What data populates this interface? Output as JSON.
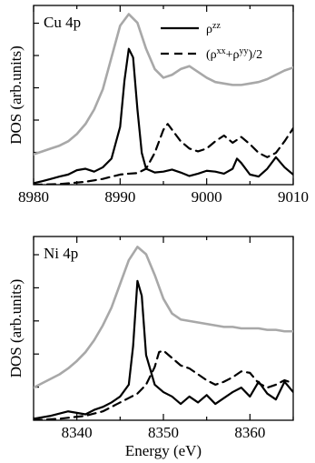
{
  "chart_data": [
    {
      "type": "line",
      "panel_label": "Cu 4p",
      "xlim": [
        8980,
        9010
      ],
      "ylim": [
        0,
        6.2
      ],
      "xticks": [
        8980,
        8990,
        9000,
        9010
      ],
      "xtick_labels": [
        "8980",
        "8990",
        "9000",
        "9010"
      ],
      "ylabel": "DOS (arb.units)",
      "xlabel": "",
      "grid": false,
      "legend": {
        "placement": "top-right",
        "entries": [
          {
            "series": "rho_zz",
            "label_base": "ρ",
            "label_sup": "zz",
            "label_tail": ""
          },
          {
            "series": "rho_xy",
            "label_base": "(ρ",
            "label_sup": "xx",
            "label_mid": "+ρ",
            "label_sup2": "yy",
            "label_tail": ")/2"
          }
        ]
      },
      "series": [
        {
          "key": "total_gray",
          "color": "#a8a8a8",
          "style": "solid",
          "x": [
            8980,
            8981,
            8982,
            8983,
            8984,
            8985,
            8986,
            8987,
            8988,
            8989,
            8990,
            8991,
            8992,
            8993,
            8994,
            8995,
            8996,
            8997,
            8998,
            8999,
            9000,
            9001,
            9002,
            9003,
            9004,
            9005,
            9006,
            9007,
            9008,
            9009,
            9010
          ],
          "y": [
            1.05,
            1.15,
            1.25,
            1.35,
            1.5,
            1.75,
            2.1,
            2.6,
            3.3,
            4.4,
            5.5,
            5.9,
            5.6,
            4.7,
            4.0,
            3.7,
            3.8,
            4.0,
            4.1,
            3.9,
            3.7,
            3.55,
            3.5,
            3.45,
            3.45,
            3.5,
            3.55,
            3.65,
            3.8,
            3.95,
            4.05
          ]
        },
        {
          "key": "rho_zz",
          "color": "#000000",
          "style": "solid",
          "x": [
            8980,
            8981,
            8982,
            8983,
            8984,
            8985,
            8986,
            8987,
            8988,
            8989,
            8990,
            8990.5,
            8991,
            8991.5,
            8992,
            8992.5,
            8993,
            8994,
            8995,
            8996,
            8997,
            8998,
            8999,
            9000,
            9001,
            9002,
            9003,
            9003.5,
            9004,
            9005,
            9006,
            9007,
            9008,
            9009,
            9010
          ],
          "y": [
            0.05,
            0.12,
            0.2,
            0.28,
            0.35,
            0.5,
            0.55,
            0.45,
            0.6,
            0.9,
            2.0,
            3.6,
            4.7,
            4.4,
            2.6,
            1.1,
            0.55,
            0.42,
            0.45,
            0.52,
            0.42,
            0.3,
            0.38,
            0.48,
            0.45,
            0.38,
            0.55,
            0.9,
            0.75,
            0.35,
            0.28,
            0.55,
            0.95,
            0.6,
            0.35
          ]
        },
        {
          "key": "rho_xy",
          "color": "#000000",
          "style": "dashed",
          "x": [
            8980,
            8983,
            8986,
            8988,
            8990,
            8991,
            8992,
            8993,
            8994,
            8995,
            8995.5,
            8996,
            8997,
            8998,
            8999,
            9000,
            9001,
            9002,
            9003,
            9004,
            9005,
            9006,
            9007,
            9008,
            9009,
            9010
          ],
          "y": [
            0.0,
            0.02,
            0.1,
            0.2,
            0.35,
            0.38,
            0.4,
            0.55,
            1.1,
            1.9,
            2.1,
            1.9,
            1.5,
            1.25,
            1.15,
            1.25,
            1.5,
            1.7,
            1.45,
            1.65,
            1.4,
            1.1,
            0.95,
            1.1,
            1.5,
            1.95
          ]
        }
      ]
    },
    {
      "type": "line",
      "panel_label": "Ni 4p",
      "xlim": [
        8335,
        8365
      ],
      "ylim": [
        0,
        6.2
      ],
      "xticks": [
        8340,
        8350,
        8360
      ],
      "xtick_labels": [
        "8340",
        "8350",
        "8360"
      ],
      "ylabel": "DOS (arb.units)",
      "xlabel": "Energy (eV)",
      "grid": false,
      "series": [
        {
          "key": "total_gray",
          "color": "#a8a8a8",
          "style": "solid",
          "x": [
            8335,
            8336,
            8337,
            8338,
            8339,
            8340,
            8341,
            8342,
            8343,
            8344,
            8345,
            8346,
            8347,
            8348,
            8349,
            8350,
            8351,
            8352,
            8353,
            8354,
            8355,
            8356,
            8357,
            8358,
            8359,
            8360,
            8361,
            8362,
            8363,
            8364,
            8365
          ],
          "y": [
            1.1,
            1.25,
            1.4,
            1.55,
            1.75,
            2.0,
            2.3,
            2.7,
            3.2,
            3.8,
            4.6,
            5.4,
            5.85,
            5.6,
            4.9,
            4.1,
            3.6,
            3.4,
            3.35,
            3.3,
            3.25,
            3.2,
            3.15,
            3.15,
            3.1,
            3.1,
            3.1,
            3.05,
            3.05,
            3.0,
            3.0
          ]
        },
        {
          "key": "rho_zz",
          "color": "#000000",
          "style": "solid",
          "x": [
            8335,
            8337,
            8339,
            8341,
            8342,
            8343,
            8344,
            8345,
            8346,
            8346.5,
            8347,
            8347.5,
            8348,
            8349,
            8350,
            8351,
            8352,
            8353,
            8354,
            8355,
            8356,
            8357,
            8358,
            8359,
            8360,
            8361,
            8362,
            8363,
            8364,
            8365
          ],
          "y": [
            0.05,
            0.15,
            0.3,
            0.2,
            0.35,
            0.45,
            0.6,
            0.8,
            1.2,
            2.5,
            4.7,
            4.2,
            2.2,
            1.2,
            0.95,
            0.8,
            0.55,
            0.8,
            0.6,
            0.85,
            0.55,
            0.75,
            0.95,
            1.1,
            0.8,
            1.3,
            0.9,
            0.7,
            1.3,
            0.95
          ]
        },
        {
          "key": "rho_xy",
          "color": "#000000",
          "style": "dashed",
          "x": [
            8335,
            8338,
            8341,
            8343,
            8345,
            8346,
            8347,
            8348,
            8349,
            8349.5,
            8350,
            8351,
            8352,
            8353,
            8354,
            8355,
            8356,
            8357,
            8358,
            8359,
            8360,
            8361,
            8362,
            8363,
            8364,
            8365
          ],
          "y": [
            0.0,
            0.05,
            0.15,
            0.3,
            0.6,
            0.75,
            0.9,
            1.2,
            1.8,
            2.3,
            2.35,
            2.1,
            1.85,
            1.75,
            1.55,
            1.35,
            1.2,
            1.3,
            1.45,
            1.65,
            1.6,
            1.25,
            1.1,
            1.2,
            1.35,
            1.25
          ]
        }
      ]
    }
  ]
}
